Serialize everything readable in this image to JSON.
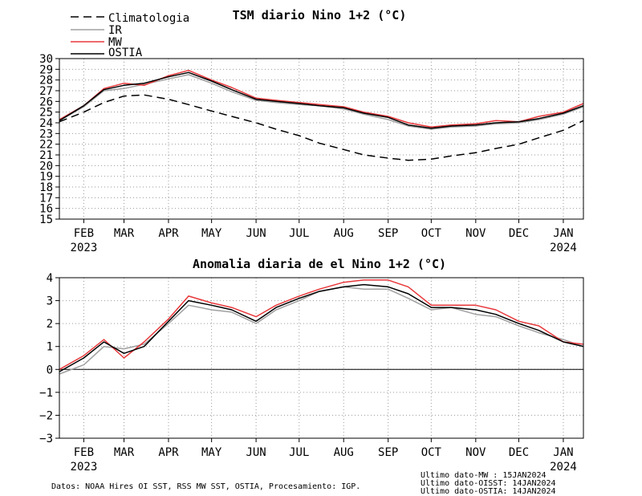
{
  "colors": {
    "climatologia": "#000000",
    "ir": "#a0a0a0",
    "mw": "#e8383b",
    "ostia": "#000000",
    "grid": "#9a9a9a"
  },
  "legend": [
    {
      "label": "Climatologia",
      "style": "dashed",
      "color": "#000000"
    },
    {
      "label": "IR",
      "style": "solid",
      "color": "#a0a0a0"
    },
    {
      "label": "MW",
      "style": "solid",
      "color": "#e8383b"
    },
    {
      "label": "OSTIA",
      "style": "solid",
      "color": "#000000"
    }
  ],
  "chart_data": [
    {
      "type": "line",
      "title": "TSM diario Nino 1+2 (°C)",
      "xlabel": "",
      "ylabel": "",
      "ylim": [
        15,
        30
      ],
      "xlim": [
        "2023-01-15",
        "2024-01-15"
      ],
      "yticks": [
        "30",
        "29",
        "28",
        "27",
        "26",
        "25",
        "24",
        "23",
        "22",
        "21",
        "20",
        "19",
        "18",
        "17",
        "16",
        "15"
      ],
      "xticks": [
        {
          "label": "FEB",
          "year": "2023",
          "x": "2023-02-01"
        },
        {
          "label": "MAR",
          "year": "",
          "x": "2023-03-01"
        },
        {
          "label": "APR",
          "year": "",
          "x": "2023-04-01"
        },
        {
          "label": "MAY",
          "year": "",
          "x": "2023-05-01"
        },
        {
          "label": "JUN",
          "year": "",
          "x": "2023-06-01"
        },
        {
          "label": "JUL",
          "year": "",
          "x": "2023-07-01"
        },
        {
          "label": "AUG",
          "year": "",
          "x": "2023-08-01"
        },
        {
          "label": "SEP",
          "year": "",
          "x": "2023-09-01"
        },
        {
          "label": "OCT",
          "year": "",
          "x": "2023-10-01"
        },
        {
          "label": "NOV",
          "year": "",
          "x": "2023-11-01"
        },
        {
          "label": "DEC",
          "year": "",
          "x": "2023-12-01"
        },
        {
          "label": "JAN",
          "year": "2024",
          "x": "2024-01-01"
        }
      ],
      "grid": true,
      "series": [
        {
          "name": "Climatologia",
          "style": "dashed",
          "color": "#000000",
          "x": [
            "2023-01-15",
            "2023-02-01",
            "2023-02-15",
            "2023-03-01",
            "2023-03-15",
            "2023-04-01",
            "2023-04-15",
            "2023-05-01",
            "2023-05-15",
            "2023-06-01",
            "2023-06-15",
            "2023-07-01",
            "2023-07-15",
            "2023-08-01",
            "2023-08-15",
            "2023-09-01",
            "2023-09-15",
            "2023-10-01",
            "2023-10-15",
            "2023-11-01",
            "2023-11-15",
            "2023-12-01",
            "2023-12-15",
            "2024-01-01",
            "2024-01-15"
          ],
          "values": [
            24.1,
            25.0,
            25.9,
            26.5,
            26.6,
            26.2,
            25.7,
            25.1,
            24.6,
            24.0,
            23.4,
            22.8,
            22.1,
            21.5,
            21.0,
            20.7,
            20.5,
            20.6,
            20.9,
            21.2,
            21.6,
            22.0,
            22.6,
            23.3,
            24.2
          ]
        },
        {
          "name": "IR",
          "style": "solid",
          "color": "#a0a0a0",
          "x": [
            "2023-01-15",
            "2023-02-01",
            "2023-02-15",
            "2023-03-01",
            "2023-03-15",
            "2023-04-01",
            "2023-04-15",
            "2023-05-01",
            "2023-05-15",
            "2023-06-01",
            "2023-06-15",
            "2023-07-01",
            "2023-07-15",
            "2023-08-01",
            "2023-08-15",
            "2023-09-01",
            "2023-09-15",
            "2023-10-01",
            "2023-10-15",
            "2023-11-01",
            "2023-11-15",
            "2023-12-01",
            "2023-12-15",
            "2024-01-01",
            "2024-01-15"
          ],
          "values": [
            24.2,
            25.5,
            27.0,
            27.2,
            27.6,
            28.1,
            28.5,
            27.7,
            26.9,
            26.1,
            25.9,
            25.7,
            25.6,
            25.3,
            24.8,
            24.3,
            23.7,
            23.4,
            23.6,
            23.7,
            23.9,
            24.0,
            24.3,
            24.8,
            25.5
          ]
        },
        {
          "name": "MW",
          "style": "solid",
          "color": "#e8383b",
          "x": [
            "2023-01-15",
            "2023-02-01",
            "2023-02-15",
            "2023-03-01",
            "2023-03-15",
            "2023-04-01",
            "2023-04-15",
            "2023-05-01",
            "2023-05-15",
            "2023-06-01",
            "2023-06-15",
            "2023-07-01",
            "2023-07-15",
            "2023-08-01",
            "2023-08-15",
            "2023-09-01",
            "2023-09-15",
            "2023-10-01",
            "2023-10-15",
            "2023-11-01",
            "2023-11-15",
            "2023-12-01",
            "2023-12-15",
            "2024-01-01",
            "2024-01-15"
          ],
          "values": [
            24.3,
            25.6,
            27.2,
            27.7,
            27.5,
            28.4,
            28.9,
            28.0,
            27.3,
            26.3,
            26.1,
            25.9,
            25.7,
            25.5,
            25.0,
            24.6,
            24.0,
            23.6,
            23.8,
            23.9,
            24.2,
            24.1,
            24.6,
            25.0,
            25.8
          ]
        },
        {
          "name": "OSTIA",
          "style": "solid",
          "color": "#000000",
          "x": [
            "2023-01-15",
            "2023-02-01",
            "2023-02-15",
            "2023-03-01",
            "2023-03-15",
            "2023-04-01",
            "2023-04-15",
            "2023-05-01",
            "2023-05-15",
            "2023-06-01",
            "2023-06-15",
            "2023-07-01",
            "2023-07-15",
            "2023-08-01",
            "2023-08-15",
            "2023-09-01",
            "2023-09-15",
            "2023-10-01",
            "2023-10-15",
            "2023-11-01",
            "2023-11-15",
            "2023-12-01",
            "2023-12-15",
            "2024-01-01",
            "2024-01-15"
          ],
          "values": [
            24.2,
            25.6,
            27.1,
            27.5,
            27.7,
            28.3,
            28.7,
            27.9,
            27.1,
            26.2,
            26.0,
            25.8,
            25.6,
            25.4,
            24.9,
            24.5,
            23.8,
            23.5,
            23.7,
            23.8,
            24.0,
            24.1,
            24.4,
            24.9,
            25.6
          ]
        }
      ]
    },
    {
      "type": "line",
      "title": "Anomalia diaria de el Nino 1+2 (°C)",
      "xlabel": "",
      "ylabel": "",
      "ylim": [
        -3,
        4
      ],
      "xlim": [
        "2023-01-15",
        "2024-01-15"
      ],
      "yticks": [
        "4",
        "3",
        "2",
        "1",
        "0",
        "−1",
        "−2",
        "−3"
      ],
      "zero_line": true,
      "grid": true,
      "series": [
        {
          "name": "IR",
          "style": "solid",
          "color": "#a0a0a0",
          "x": [
            "2023-01-15",
            "2023-02-01",
            "2023-02-15",
            "2023-03-01",
            "2023-03-15",
            "2023-04-01",
            "2023-04-15",
            "2023-05-01",
            "2023-05-15",
            "2023-06-01",
            "2023-06-15",
            "2023-07-01",
            "2023-07-15",
            "2023-08-01",
            "2023-08-15",
            "2023-09-01",
            "2023-09-15",
            "2023-10-01",
            "2023-10-15",
            "2023-11-01",
            "2023-11-15",
            "2023-12-01",
            "2023-12-15",
            "2024-01-01",
            "2024-01-15"
          ],
          "values": [
            -0.2,
            0.2,
            1.0,
            0.9,
            1.1,
            2.0,
            2.8,
            2.6,
            2.5,
            2.0,
            2.6,
            3.0,
            3.4,
            3.6,
            3.5,
            3.5,
            3.1,
            2.6,
            2.7,
            2.4,
            2.3,
            1.9,
            1.6,
            1.3,
            1.0
          ]
        },
        {
          "name": "MW",
          "style": "solid",
          "color": "#e8383b",
          "x": [
            "2023-01-15",
            "2023-02-01",
            "2023-02-15",
            "2023-03-01",
            "2023-03-15",
            "2023-04-01",
            "2023-04-15",
            "2023-05-01",
            "2023-05-15",
            "2023-06-01",
            "2023-06-15",
            "2023-07-01",
            "2023-07-15",
            "2023-08-01",
            "2023-08-15",
            "2023-09-01",
            "2023-09-15",
            "2023-10-01",
            "2023-10-15",
            "2023-11-01",
            "2023-11-15",
            "2023-12-01",
            "2023-12-15",
            "2024-01-01",
            "2024-01-15"
          ],
          "values": [
            0.0,
            0.6,
            1.3,
            0.5,
            1.2,
            2.2,
            3.2,
            2.9,
            2.7,
            2.3,
            2.8,
            3.2,
            3.5,
            3.8,
            3.9,
            3.9,
            3.6,
            2.8,
            2.8,
            2.8,
            2.6,
            2.1,
            1.9,
            1.2,
            1.1
          ]
        },
        {
          "name": "OSTIA",
          "style": "solid",
          "color": "#000000",
          "x": [
            "2023-01-15",
            "2023-02-01",
            "2023-02-15",
            "2023-03-01",
            "2023-03-15",
            "2023-04-01",
            "2023-04-15",
            "2023-05-01",
            "2023-05-15",
            "2023-06-01",
            "2023-06-15",
            "2023-07-01",
            "2023-07-15",
            "2023-08-01",
            "2023-08-15",
            "2023-09-01",
            "2023-09-15",
            "2023-10-01",
            "2023-10-15",
            "2023-11-01",
            "2023-11-15",
            "2023-12-01",
            "2023-12-15",
            "2024-01-01",
            "2024-01-15"
          ],
          "values": [
            -0.1,
            0.5,
            1.2,
            0.7,
            1.0,
            2.1,
            3.0,
            2.8,
            2.6,
            2.1,
            2.7,
            3.1,
            3.4,
            3.6,
            3.7,
            3.6,
            3.3,
            2.7,
            2.7,
            2.6,
            2.4,
            2.0,
            1.7,
            1.2,
            1.0
          ]
        }
      ]
    }
  ],
  "footer": {
    "source": "Datos: NOAA Hires OI SST, RSS MW SST, OSTIA, Procesamiento: IGP.",
    "last_mw": "Ultimo dato-MW   : 15JAN2024",
    "last_oisst": "Ultimo dato-OISST: 14JAN2024",
    "last_ostia": "Ultimo dato-OSTIA: 14JAN2024"
  }
}
